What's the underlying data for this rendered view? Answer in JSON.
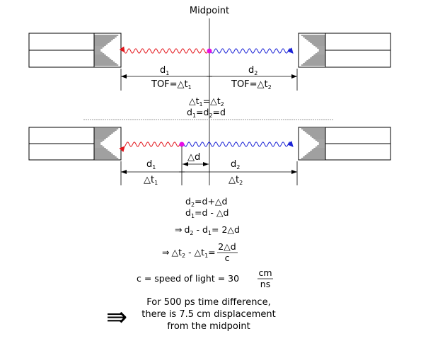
{
  "labels": {
    "midpoint": "Midpoint",
    "d": "d",
    "sub1": "1",
    "sub2": "2",
    "tof": "TOF=",
    "delta": "△",
    "t": "t",
    "delta_d": "△d",
    "delta_t": "△t"
  },
  "equations": {
    "eq_dt": [
      "△t",
      "1",
      "=△t",
      "2"
    ],
    "eq_dd": [
      "d",
      "1",
      "=d",
      "2",
      "=d"
    ],
    "eq3": [
      "d",
      "2",
      "=d+△d"
    ],
    "eq4": [
      "d",
      "1",
      "=d - △d"
    ],
    "eq5_prefix": "⇒",
    "eq5": [
      "d",
      "2",
      " - d",
      "1",
      "= 2△d"
    ],
    "eq6_prefix": "⇒",
    "eq6": [
      "△t",
      "2",
      " - △t",
      "1",
      "="
    ],
    "eq6_frac_num": "2△d",
    "eq6_frac_den": "c",
    "eq7": "c = speed of light = 30",
    "eq7_frac_num": "cm",
    "eq7_frac_den": "ns"
  },
  "conclusion": {
    "arrow": "⇛",
    "lines": [
      "For 500 ps time difference,",
      "there is 7.5 cm displacement",
      "from the midpoint"
    ]
  },
  "colors": {
    "left_photon": "#e3161c",
    "right_photon": "#1b23d6",
    "annihilation_point": "#e60ee6",
    "line": "#000000",
    "separator": "#9a9a9a"
  }
}
